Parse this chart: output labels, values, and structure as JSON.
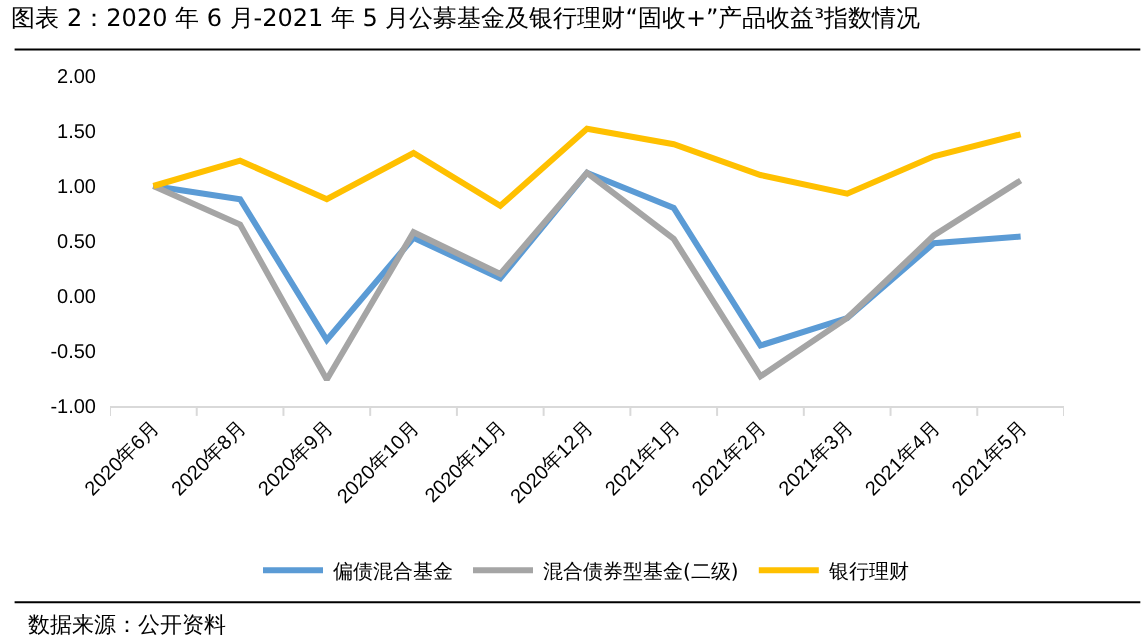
{
  "chart_data": {
    "type": "line",
    "title": "图表 2：2020 年 6 月-2021 年 5 月公募基金及银行理财“固收+”产品收益³指数情况",
    "categories": [
      "2020年6月",
      "2020年8月",
      "2020年9月",
      "2020年10月",
      "2020年11月",
      "2020年12月",
      "2021年1月",
      "2021年2月",
      "2021年3月",
      "2021年4月",
      "2021年5月"
    ],
    "series": [
      {
        "name": "偏债混合基金",
        "color": "#5b9bd5",
        "values": [
          1.0,
          0.88,
          -0.4,
          0.53,
          0.16,
          1.12,
          0.8,
          -0.45,
          -0.2,
          0.48,
          0.54
        ]
      },
      {
        "name": "混合债券型基金(二级)",
        "color": "#a5a5a5",
        "values": [
          1.0,
          0.65,
          -0.76,
          0.58,
          0.2,
          1.12,
          0.52,
          -0.73,
          -0.2,
          0.55,
          1.05
        ]
      },
      {
        "name": "银行理财",
        "color": "#ffc000",
        "values": [
          1.0,
          1.23,
          0.88,
          1.3,
          0.82,
          1.52,
          1.38,
          1.1,
          0.93,
          1.27,
          1.47
        ]
      }
    ],
    "ylim": [
      -1,
      2
    ],
    "yticks": [
      {
        "value": -1,
        "label": "-1.00"
      },
      {
        "value": -0.5,
        "label": "-0.50"
      },
      {
        "value": 0,
        "label": "0.00"
      },
      {
        "value": 0.5,
        "label": "0.50"
      },
      {
        "value": 1,
        "label": "1.00"
      },
      {
        "value": 1.5,
        "label": "1.50"
      },
      {
        "value": 2,
        "label": "2.00"
      }
    ],
    "grid": false,
    "legend": "bottom",
    "marker": "none",
    "line_style": "solid",
    "annotations": [
      "数据来源：公开资料"
    ]
  }
}
